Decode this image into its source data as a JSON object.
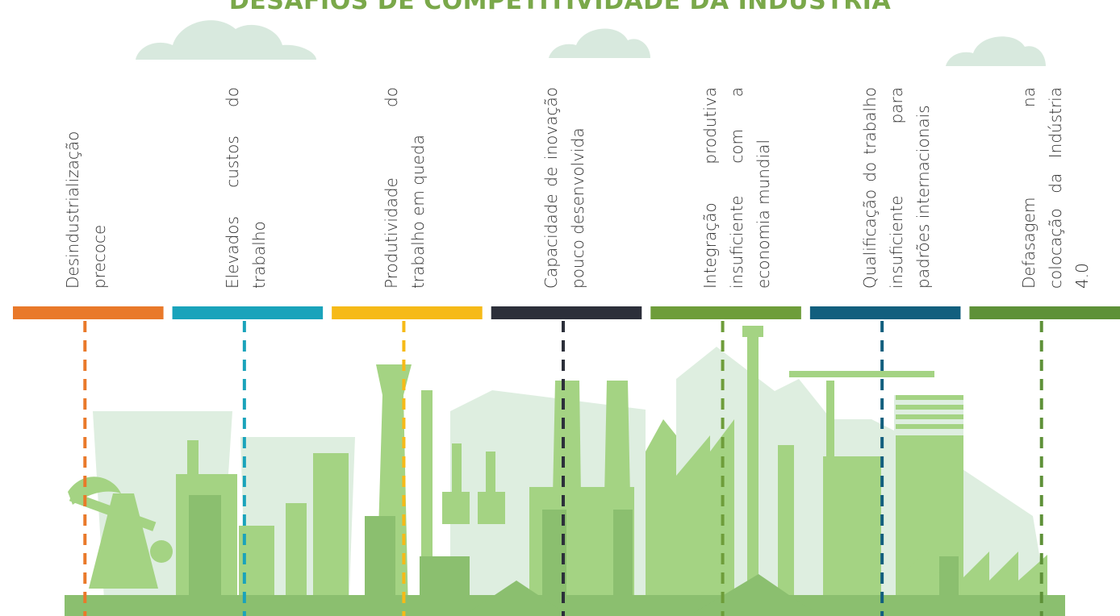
{
  "title": "DESAFIOS DE COMPETITIVIDADE DA INDÚSTRIA",
  "challenges": [
    {
      "label": "Desindustrialização precoce",
      "color": "#e9792a"
    },
    {
      "label": "Elevados custos do trabalho",
      "color": "#1aa3bb"
    },
    {
      "label": "Produtividade do trabalho em queda",
      "color": "#f6ba18"
    },
    {
      "label": "Capacidade de inovação pouco desenvolvida",
      "color": "#2c2f3a"
    },
    {
      "label": "Integração produtiva insuficiente com a economia mundial",
      "color": "#6e9d3a"
    },
    {
      "label": "Qualificação do trabalho insuficiente para padrões internacionais",
      "color": "#125f7e"
    },
    {
      "label": "Defasagem na colocação da Indústria 4.0",
      "color": "#5e9138"
    }
  ],
  "colors": {
    "skyline_light": "#deeee0",
    "skyline_mid": "#a4d383",
    "skyline_dark": "#8bbf6f",
    "cloud": "#d8e9de"
  }
}
